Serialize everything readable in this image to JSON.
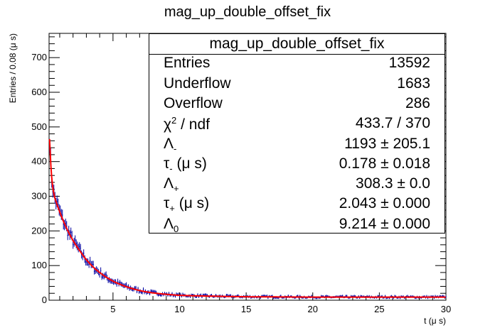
{
  "chart_data": {
    "type": "histogram",
    "title": "mag_up_double_offset_fix",
    "xlabel": "t (μ s)",
    "ylabel": "Entries / 0.08 (μ s)",
    "xlim": [
      0.2,
      30
    ],
    "ylim": [
      0,
      770
    ],
    "x_ticks": [
      5,
      10,
      15,
      20,
      25,
      30
    ],
    "y_ticks": [
      0,
      100,
      200,
      300,
      400,
      500,
      600,
      700
    ],
    "bin_width": 0.08,
    "series": [
      {
        "color": "#0000a0",
        "style": "data points with error bars",
        "shape": "double exponential decay plus constant",
        "x": [
          0.24,
          0.32,
          0.4,
          0.48,
          0.56,
          0.64,
          0.8,
          1.0,
          1.2,
          1.5,
          2.0,
          2.5,
          3.0,
          3.5,
          4.0,
          5.0,
          6.0,
          7.0,
          8.0,
          10.0,
          12.0,
          15.0,
          20.0,
          25.0,
          30.0
        ],
        "values": [
          468,
          400,
          352,
          325,
          307,
          294,
          276,
          255,
          235,
          209,
          172,
          143,
          117,
          96,
          80,
          55,
          39,
          28,
          21,
          14,
          12,
          10,
          9,
          9,
          9
        ]
      },
      {
        "color": "#ff0000",
        "style": "fit curve",
        "x": [
          0.24,
          0.32,
          0.4,
          0.48,
          0.56,
          0.64,
          0.8,
          1.0,
          1.2,
          1.5,
          2.0,
          2.5,
          3.0,
          3.5,
          4.0,
          5.0,
          6.0,
          7.0,
          8.0,
          10.0,
          12.0,
          15.0,
          20.0,
          25.0,
          30.0
        ],
        "values": [
          465,
          398,
          352,
          325,
          307,
          294,
          276,
          255,
          235,
          209,
          172,
          143,
          117,
          96,
          80,
          55,
          39,
          28,
          21,
          14,
          12,
          10,
          9,
          9,
          9
        ]
      }
    ]
  },
  "stats": {
    "title": "mag_up_double_offset_fix",
    "rows": [
      {
        "label": "Entries",
        "value": "13592"
      },
      {
        "label": "Underflow",
        "value": "1683"
      },
      {
        "label": "Overflow",
        "value": "286"
      },
      {
        "label": "χ",
        "label_sup": "2",
        "label_rest": " / ndf",
        "value": "433.7 / 370"
      },
      {
        "label": "Λ",
        "label_sub": "-",
        "label_rest": "",
        "value": "1193 ± 205.1"
      },
      {
        "label": "τ",
        "label_sub": "-",
        "label_rest": " (μ s)",
        "value": "0.178 ± 0.018"
      },
      {
        "label": "Λ",
        "label_sub": "+",
        "label_rest": "",
        "value": "308.3 ± 0.0"
      },
      {
        "label": "τ",
        "label_sub": "+",
        "label_rest": " (μ s)",
        "value": "2.043 ± 0.000"
      },
      {
        "label": "Λ",
        "label_sub": "0",
        "label_rest": "",
        "value": "9.214 ± 0.000"
      }
    ]
  }
}
